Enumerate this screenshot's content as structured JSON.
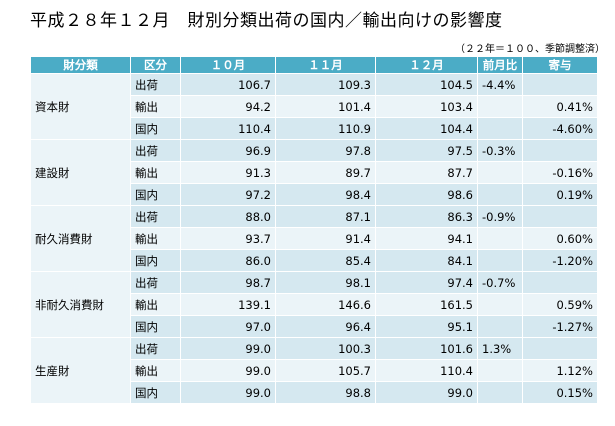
{
  "title": "平成２８年１２月　財別分類出荷の国内／輸出向けの影響度",
  "note": "（２２年＝１００、季節調整済）",
  "headers": {
    "category": "財分類",
    "kind": "区分",
    "m10": "１０月",
    "m11": "１１月",
    "m12": "１２月",
    "ratio": "前月比",
    "contrib": "寄与"
  },
  "groups": [
    {
      "name": "資本財",
      "rows": [
        {
          "kind": "出荷",
          "m10": "106.7",
          "m11": "109.3",
          "m12": "104.5",
          "ratio": "-4.4%",
          "contrib": ""
        },
        {
          "kind": "輸出",
          "m10": "94.2",
          "m11": "101.4",
          "m12": "103.4",
          "ratio": "",
          "contrib": "0.41%"
        },
        {
          "kind": "国内",
          "m10": "110.4",
          "m11": "110.9",
          "m12": "104.4",
          "ratio": "",
          "contrib": "-4.60%"
        }
      ]
    },
    {
      "name": "建設財",
      "rows": [
        {
          "kind": "出荷",
          "m10": "96.9",
          "m11": "97.8",
          "m12": "97.5",
          "ratio": "-0.3%",
          "contrib": ""
        },
        {
          "kind": "輸出",
          "m10": "91.3",
          "m11": "89.7",
          "m12": "87.7",
          "ratio": "",
          "contrib": "-0.16%"
        },
        {
          "kind": "国内",
          "m10": "97.2",
          "m11": "98.4",
          "m12": "98.6",
          "ratio": "",
          "contrib": "0.19%"
        }
      ]
    },
    {
      "name": "耐久消費財",
      "rows": [
        {
          "kind": "出荷",
          "m10": "88.0",
          "m11": "87.1",
          "m12": "86.3",
          "ratio": "-0.9%",
          "contrib": ""
        },
        {
          "kind": "輸出",
          "m10": "93.7",
          "m11": "91.4",
          "m12": "94.1",
          "ratio": "",
          "contrib": "0.60%"
        },
        {
          "kind": "国内",
          "m10": "86.0",
          "m11": "85.4",
          "m12": "84.1",
          "ratio": "",
          "contrib": "-1.20%"
        }
      ]
    },
    {
      "name": "非耐久消費財",
      "rows": [
        {
          "kind": "出荷",
          "m10": "98.7",
          "m11": "98.1",
          "m12": "97.4",
          "ratio": "-0.7%",
          "contrib": ""
        },
        {
          "kind": "輸出",
          "m10": "139.1",
          "m11": "146.6",
          "m12": "161.5",
          "ratio": "",
          "contrib": "0.59%"
        },
        {
          "kind": "国内",
          "m10": "97.0",
          "m11": "96.4",
          "m12": "95.1",
          "ratio": "",
          "contrib": "-1.27%"
        }
      ]
    },
    {
      "name": "生産財",
      "rows": [
        {
          "kind": "出荷",
          "m10": "99.0",
          "m11": "100.3",
          "m12": "101.6",
          "ratio": "1.3%",
          "contrib": ""
        },
        {
          "kind": "輸出",
          "m10": "99.0",
          "m11": "105.7",
          "m12": "110.4",
          "ratio": "",
          "contrib": "1.12%"
        },
        {
          "kind": "国内",
          "m10": "99.0",
          "m11": "98.8",
          "m12": "99.0",
          "ratio": "",
          "contrib": "0.15%"
        }
      ]
    }
  ]
}
